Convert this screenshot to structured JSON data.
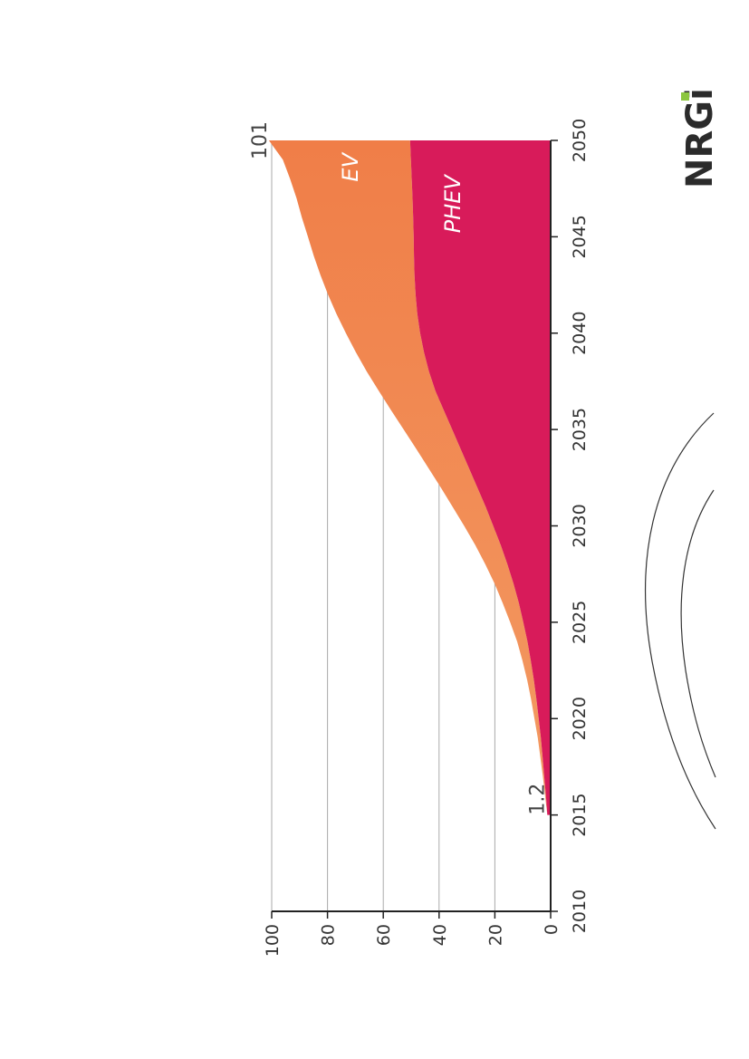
{
  "logo": {
    "text": "NRGi",
    "dot_color": "#8cc63f"
  },
  "colors": {
    "ev": "#f07e48",
    "ev_light": "#f39a62",
    "phev": "#d81b5a",
    "grid": "#aaaaaa",
    "axis": "#222222"
  },
  "chart_data": {
    "type": "area",
    "stacked": true,
    "x": [
      2015,
      2016,
      2017,
      2018,
      2019,
      2020,
      2021,
      2022,
      2023,
      2024,
      2025,
      2026,
      2027,
      2028,
      2029,
      2030,
      2031,
      2032,
      2033,
      2034,
      2035,
      2036,
      2037,
      2038,
      2039,
      2040,
      2041,
      2042,
      2043,
      2044,
      2045,
      2046,
      2047,
      2048,
      2049,
      2050
    ],
    "series": [
      {
        "name": "PHEV",
        "values": [
          1.2,
          1.7,
          2.3,
          2.9,
          3.5,
          4.3,
          5.1,
          6.0,
          7.1,
          8.3,
          9.8,
          11.4,
          13.3,
          15.5,
          17.9,
          20.6,
          23.3,
          26.3,
          29.3,
          32.3,
          35.3,
          38.3,
          41.3,
          43.6,
          45.4,
          46.8,
          47.8,
          48.4,
          48.8,
          49.0,
          49.1,
          49.3,
          49.5,
          49.8,
          50.1,
          50.4
        ]
      },
      {
        "name": "EV",
        "values": [
          0.0,
          0.3,
          0.5,
          0.8,
          1.1,
          1.5,
          1.9,
          2.4,
          3.0,
          3.7,
          4.7,
          5.8,
          6.8,
          7.9,
          9.1,
          10.4,
          11.9,
          13.1,
          14.5,
          15.9,
          17.4,
          18.9,
          20.3,
          22.3,
          24.4,
          26.6,
          29.0,
          31.4,
          33.7,
          35.9,
          37.9,
          39.9,
          41.6,
          43.6,
          45.9,
          50.6
        ]
      }
    ],
    "series_labels": [
      "EV",
      "PHEV"
    ],
    "x_ticks": [
      "2010",
      "2015",
      "2020",
      "2025",
      "2030",
      "2035",
      "2040",
      "2045",
      "2050"
    ],
    "y_ticks": [
      "0",
      "20",
      "40",
      "60",
      "80",
      "100"
    ],
    "xlim": [
      2010,
      2050
    ],
    "ylim": [
      0,
      100
    ],
    "annotations": [
      {
        "text": "1.2",
        "x": 2015,
        "y": 1.2
      },
      {
        "text": "101",
        "x": 2050,
        "y": 101
      }
    ],
    "grid": true,
    "orientation": "rotated 90° counter-clockwise on page",
    "title": "",
    "xlabel": "",
    "ylabel": ""
  }
}
